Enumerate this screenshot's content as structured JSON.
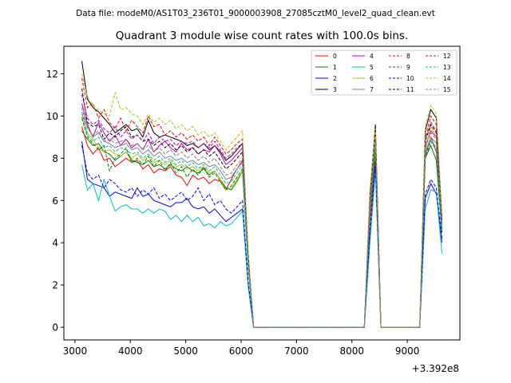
{
  "chart_data": {
    "type": "line",
    "suptitle": "Data file: modeM0/AS1T03_236T01_9000003908_27085cztM0_level2_quad_clean.evt",
    "title": "Quadrant 3 module wise count rates with 100.0s bins.",
    "xlabel": "",
    "ylabel": "",
    "x_offset_label": "+3.392e8",
    "xlim": [
      2800,
      9950
    ],
    "ylim": [
      -0.6,
      13.3
    ],
    "x_ticks": [
      3000,
      4000,
      5000,
      6000,
      7000,
      8000,
      9000
    ],
    "x_tick_labels": [
      "3000",
      "4000",
      "5000",
      "6000",
      "7000",
      "8000",
      "9000"
    ],
    "y_ticks": [
      0,
      2,
      4,
      6,
      8,
      10,
      12
    ],
    "y_tick_labels": [
      "0",
      "2",
      "4",
      "6",
      "8",
      "10",
      "12"
    ],
    "legend_position": "top-right",
    "x": [
      3125,
      3225,
      3325,
      3425,
      3525,
      3625,
      3725,
      3825,
      3925,
      4025,
      4125,
      4225,
      4325,
      4425,
      4525,
      4625,
      4725,
      4825,
      4925,
      5025,
      5125,
      5225,
      5325,
      5425,
      5525,
      5625,
      5725,
      5825,
      5925,
      6025,
      6125,
      6225,
      8225,
      8325,
      8425,
      8525,
      9225,
      9325,
      9425,
      9525,
      9625
    ],
    "series": [
      {
        "name": "0",
        "color": "#ff0000",
        "dash": "solid",
        "values": [
          9.5,
          8.6,
          8.2,
          8.5,
          7.9,
          8.0,
          7.6,
          7.8,
          8.0,
          7.8,
          7.9,
          7.5,
          7.7,
          7.3,
          7.5,
          7.4,
          7.6,
          7.2,
          7.1,
          6.7,
          7.2,
          7.0,
          7.1,
          6.8,
          7.0,
          6.9,
          6.5,
          7.0,
          7.5,
          7.9,
          3.0,
          0.0,
          0.0,
          5.0,
          8.0,
          0.0,
          0.0,
          8.1,
          9.0,
          8.3,
          4.5
        ]
      },
      {
        "name": "1",
        "color": "#008000",
        "dash": "solid",
        "values": [
          9.3,
          8.9,
          8.6,
          8.7,
          8.3,
          8.2,
          7.9,
          8.1,
          8.3,
          7.9,
          7.8,
          7.7,
          7.9,
          7.6,
          7.7,
          7.5,
          7.7,
          7.5,
          7.4,
          7.6,
          7.4,
          7.3,
          7.5,
          7.2,
          7.4,
          7.0,
          6.6,
          6.5,
          6.9,
          7.4,
          3.0,
          0.0,
          0.0,
          5.5,
          8.3,
          0.0,
          0.0,
          8.0,
          8.6,
          7.9,
          4.5
        ]
      },
      {
        "name": "2",
        "color": "#0000ff",
        "dash": "solid",
        "values": [
          8.8,
          7.0,
          6.8,
          6.7,
          6.6,
          6.2,
          6.4,
          6.3,
          6.2,
          6.1,
          6.6,
          6.2,
          6.3,
          6.0,
          5.9,
          5.8,
          5.7,
          5.9,
          5.9,
          6.1,
          5.7,
          5.6,
          5.7,
          5.4,
          5.6,
          5.3,
          5.0,
          5.2,
          5.4,
          5.6,
          2.0,
          0.0,
          0.0,
          4.2,
          7.6,
          0.0,
          0.0,
          6.1,
          6.8,
          6.3,
          4.0
        ]
      },
      {
        "name": "3",
        "color": "#000000",
        "dash": "solid",
        "values": [
          12.6,
          10.8,
          10.4,
          10.2,
          9.9,
          9.6,
          9.2,
          9.4,
          9.6,
          9.3,
          9.4,
          9.0,
          9.8,
          9.2,
          9.0,
          9.1,
          9.0,
          8.9,
          8.8,
          8.6,
          8.7,
          8.5,
          8.7,
          8.4,
          8.6,
          8.3,
          7.9,
          8.1,
          8.4,
          8.7,
          3.5,
          0.0,
          0.0,
          6.2,
          9.6,
          0.0,
          0.0,
          9.3,
          10.3,
          9.9,
          5.0
        ]
      },
      {
        "name": "4",
        "color": "#bf00bf",
        "dash": "solid",
        "values": [
          10.6,
          9.6,
          9.0,
          9.7,
          9.2,
          8.8,
          9.1,
          8.6,
          8.9,
          8.5,
          8.7,
          8.4,
          8.9,
          8.3,
          8.6,
          8.8,
          8.5,
          8.3,
          8.7,
          8.4,
          8.5,
          8.2,
          8.4,
          8.3,
          8.6,
          8.2,
          7.7,
          7.9,
          8.2,
          8.5,
          3.3,
          0.0,
          0.0,
          6.0,
          9.1,
          0.0,
          0.0,
          8.6,
          9.3,
          9.0,
          5.0
        ]
      },
      {
        "name": "5",
        "color": "#00bfbf",
        "dash": "solid",
        "values": [
          7.7,
          6.5,
          6.8,
          6.0,
          7.0,
          6.2,
          5.5,
          5.7,
          5.8,
          5.6,
          5.6,
          5.4,
          5.6,
          5.4,
          5.6,
          5.5,
          5.1,
          5.3,
          5.0,
          5.3,
          5.0,
          5.2,
          4.8,
          4.9,
          4.7,
          5.0,
          4.8,
          4.9,
          5.2,
          5.5,
          2.0,
          0.0,
          0.0,
          4.0,
          7.4,
          0.0,
          0.0,
          5.6,
          6.5,
          6.4,
          3.5
        ]
      },
      {
        "name": "6",
        "color": "#bfbf00",
        "dash": "solid",
        "values": [
          10.0,
          9.2,
          8.9,
          8.5,
          8.3,
          8.4,
          8.2,
          8.1,
          8.3,
          8.0,
          8.2,
          7.9,
          8.1,
          7.8,
          7.9,
          7.7,
          7.9,
          7.6,
          7.7,
          7.5,
          7.6,
          7.4,
          7.6,
          7.3,
          7.4,
          7.0,
          6.5,
          6.6,
          7.0,
          7.4,
          3.0,
          0.0,
          0.0,
          5.6,
          9.0,
          0.0,
          0.0,
          8.4,
          9.5,
          9.0,
          5.0
        ]
      },
      {
        "name": "7",
        "color": "#808080",
        "dash": "solid",
        "values": [
          10.1,
          9.5,
          9.0,
          9.2,
          8.8,
          8.7,
          8.5,
          8.6,
          8.7,
          8.4,
          8.5,
          8.2,
          8.4,
          8.1,
          8.3,
          8.0,
          8.1,
          7.9,
          8.0,
          7.8,
          7.9,
          7.7,
          7.8,
          7.6,
          7.7,
          7.4,
          7.0,
          7.1,
          7.5,
          7.8,
          3.2,
          0.0,
          0.0,
          5.8,
          8.8,
          0.0,
          0.0,
          8.3,
          9.0,
          8.7,
          4.8
        ]
      },
      {
        "name": "8",
        "color": "#ff0000",
        "dash": "dashed",
        "values": [
          11.8,
          10.4,
          10.6,
          9.9,
          10.3,
          9.7,
          9.4,
          9.9,
          9.3,
          9.8,
          9.5,
          9.2,
          10.0,
          9.5,
          9.6,
          9.1,
          9.3,
          9.0,
          9.2,
          8.9,
          9.1,
          8.8,
          9.0,
          8.6,
          9.0,
          8.6,
          8.2,
          8.4,
          8.7,
          8.9,
          3.6,
          0.0,
          0.0,
          6.4,
          9.3,
          0.0,
          0.0,
          9.0,
          10.0,
          9.6,
          5.2
        ]
      },
      {
        "name": "9",
        "color": "#008000",
        "dash": "dashed",
        "values": [
          9.9,
          9.0,
          8.7,
          8.4,
          8.6,
          7.4,
          8.0,
          8.2,
          8.5,
          7.8,
          8.0,
          7.7,
          8.1,
          7.6,
          7.9,
          7.4,
          7.8,
          7.3,
          7.6,
          7.1,
          7.5,
          7.2,
          7.6,
          7.1,
          7.3,
          6.9,
          6.5,
          6.7,
          7.1,
          7.5,
          3.0,
          0.0,
          0.0,
          5.5,
          8.5,
          0.0,
          0.0,
          8.0,
          8.8,
          8.4,
          4.6
        ]
      },
      {
        "name": "10",
        "color": "#0000ff",
        "dash": "dashed",
        "values": [
          8.6,
          7.3,
          7.0,
          7.2,
          6.6,
          7.0,
          6.8,
          6.5,
          6.4,
          6.6,
          6.2,
          6.5,
          6.3,
          6.6,
          6.1,
          6.3,
          6.0,
          6.2,
          6.4,
          6.0,
          6.2,
          6.6,
          6.0,
          6.3,
          5.8,
          6.0,
          5.6,
          5.4,
          5.7,
          6.0,
          2.2,
          0.0,
          0.0,
          4.5,
          7.8,
          0.0,
          0.0,
          6.3,
          7.0,
          6.6,
          4.2
        ]
      },
      {
        "name": "11",
        "color": "#000000",
        "dash": "dashed",
        "values": [
          11.3,
          9.7,
          9.5,
          9.6,
          8.9,
          9.2,
          9.0,
          9.3,
          9.5,
          9.0,
          9.1,
          8.8,
          8.9,
          8.6,
          8.8,
          8.5,
          8.7,
          8.4,
          8.6,
          8.3,
          8.5,
          8.2,
          8.4,
          8.1,
          8.3,
          7.9,
          7.5,
          7.7,
          8.0,
          8.3,
          3.3,
          0.0,
          0.0,
          6.0,
          9.3,
          0.0,
          0.0,
          8.8,
          9.6,
          9.2,
          5.0
        ]
      },
      {
        "name": "12",
        "color": "#bf00bf",
        "dash": "dashed",
        "values": [
          11.0,
          9.9,
          9.6,
          9.8,
          9.4,
          9.2,
          9.5,
          9.0,
          9.3,
          8.9,
          9.1,
          8.8,
          9.2,
          8.7,
          9.0,
          8.8,
          8.9,
          8.6,
          8.8,
          8.7,
          8.8,
          8.5,
          8.7,
          8.5,
          8.8,
          8.4,
          8.0,
          8.2,
          8.5,
          8.7,
          3.4,
          0.0,
          0.0,
          6.1,
          9.2,
          0.0,
          0.0,
          8.9,
          9.7,
          9.3,
          5.1
        ]
      },
      {
        "name": "13",
        "color": "#00bfbf",
        "dash": "dashed",
        "values": [
          10.2,
          9.1,
          8.8,
          9.0,
          8.5,
          8.6,
          8.3,
          8.5,
          8.4,
          8.2,
          8.3,
          8.0,
          8.2,
          7.9,
          8.1,
          7.8,
          8.0,
          7.7,
          7.9,
          7.6,
          7.8,
          7.5,
          7.7,
          7.4,
          7.6,
          7.2,
          6.8,
          6.9,
          7.3,
          7.7,
          3.0,
          0.0,
          0.0,
          5.6,
          8.7,
          0.0,
          0.0,
          8.2,
          8.9,
          8.5,
          4.7
        ]
      },
      {
        "name": "14",
        "color": "#bfbf00",
        "dash": "dashed",
        "values": [
          12.0,
          10.9,
          10.5,
          10.3,
          10.1,
          10.0,
          11.1,
          10.3,
          10.4,
          10.1,
          10.0,
          9.6,
          10.1,
          9.7,
          9.9,
          9.6,
          9.8,
          9.4,
          9.6,
          9.3,
          9.5,
          9.1,
          9.3,
          9.0,
          9.2,
          8.8,
          8.4,
          8.7,
          9.0,
          9.3,
          3.7,
          0.0,
          0.0,
          6.5,
          9.4,
          0.0,
          0.0,
          9.5,
          10.5,
          10.1,
          5.4
        ]
      },
      {
        "name": "15",
        "color": "#808080",
        "dash": "dashed",
        "values": [
          10.4,
          9.4,
          9.1,
          9.3,
          8.8,
          8.9,
          8.7,
          8.8,
          8.9,
          8.6,
          8.7,
          8.4,
          8.6,
          8.3,
          8.5,
          8.2,
          8.4,
          8.1,
          8.3,
          8.0,
          8.2,
          7.9,
          8.1,
          7.8,
          8.0,
          7.6,
          7.2,
          7.3,
          7.7,
          8.0,
          3.2,
          0.0,
          0.0,
          5.9,
          8.9,
          0.0,
          0.0,
          8.5,
          9.2,
          8.9,
          4.9
        ]
      }
    ]
  }
}
